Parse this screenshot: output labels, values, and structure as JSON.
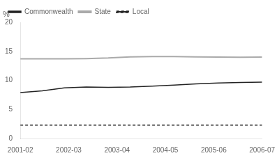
{
  "chart_data": {
    "type": "line",
    "ylabel": "%",
    "x": [
      0,
      0.45454545454545453,
      0.9090909090909091,
      1.3636363636363635,
      1.8181818181818181,
      2.2727272727272725,
      2.727272727272727,
      3.1818181818181817,
      3.6363636363636362,
      4.090909090909091,
      4.545454545454545,
      5
    ],
    "series": [
      {
        "name": "Commonwealth",
        "color": "#222222",
        "line_style": "solid",
        "values": [
          7.9,
          8.2,
          8.7,
          8.85,
          8.8,
          8.85,
          9.0,
          9.2,
          9.4,
          9.55,
          9.65,
          9.7
        ]
      },
      {
        "name": "State",
        "color": "#aaaaaa",
        "line_style": "solid",
        "values": [
          13.7,
          13.7,
          13.7,
          13.75,
          13.85,
          14.05,
          14.1,
          14.1,
          14.05,
          14.0,
          13.97,
          14.0
        ]
      },
      {
        "name": "Local",
        "color": "#222222",
        "line_style": "dashed",
        "values": [
          2.3,
          2.3,
          2.3,
          2.3,
          2.3,
          2.3,
          2.3,
          2.3,
          2.3,
          2.3,
          2.3,
          2.3
        ]
      }
    ],
    "xlim": [
      0,
      5
    ],
    "xticks": [
      {
        "value": 0,
        "label": "2001-02"
      },
      {
        "value": 1,
        "label": "2002-03"
      },
      {
        "value": 2,
        "label": "2003-04"
      },
      {
        "value": 3,
        "label": "2004-05"
      },
      {
        "value": 4,
        "label": "2005-06"
      },
      {
        "value": 5,
        "label": "2006-07"
      }
    ],
    "ylim": [
      0,
      20
    ],
    "yticks": [
      0,
      5,
      10,
      15,
      20
    ],
    "grid": false,
    "legend": "upper left"
  }
}
